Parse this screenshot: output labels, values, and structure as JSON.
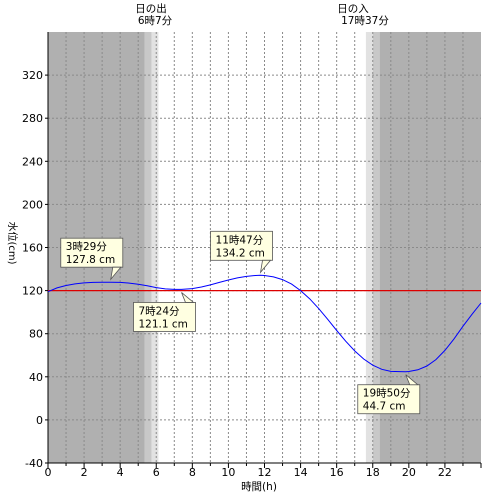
{
  "header": {
    "sunrise_label": "日の出",
    "sunrise_time": "6時7分",
    "sunset_label": "日の入",
    "sunset_time": "17時37分"
  },
  "chart_data": {
    "type": "line",
    "xlabel": "時間(h)",
    "ylabel": "水位(cm)",
    "xlim": [
      0,
      24
    ],
    "ylim": [
      -40,
      360
    ],
    "x_ticks": [
      0,
      2,
      4,
      6,
      8,
      10,
      12,
      14,
      16,
      18,
      20,
      22
    ],
    "y_ticks": [
      -40,
      0,
      40,
      80,
      120,
      160,
      200,
      240,
      280,
      320
    ],
    "grid": true,
    "reference_line": {
      "value": 120,
      "color": "#dd0000"
    },
    "series": [
      {
        "color": "#0000ff",
        "x": [
          0,
          0.5,
          1,
          1.5,
          2,
          2.5,
          3,
          3.48,
          4,
          4.5,
          5,
          5.5,
          6,
          6.5,
          7,
          7.4,
          8,
          8.5,
          9,
          9.5,
          10,
          10.5,
          11,
          11.5,
          11.78,
          12,
          12.5,
          13,
          13.5,
          14,
          14.5,
          15,
          15.5,
          16,
          16.5,
          17,
          17.5,
          18,
          18.5,
          19,
          19.5,
          19.83,
          20,
          20.5,
          21,
          21.5,
          22,
          22.5,
          23,
          23.5,
          24
        ],
        "y": [
          119.0,
          122.5,
          124.7,
          126.2,
          127.1,
          127.6,
          127.8,
          127.8,
          127.6,
          127.0,
          125.9,
          124.5,
          122.8,
          121.6,
          121.1,
          121.1,
          121.9,
          123.3,
          125.3,
          127.6,
          129.8,
          131.8,
          133.2,
          134.0,
          134.2,
          134.0,
          132.7,
          130.2,
          126.0,
          120.0,
          112.5,
          103.5,
          93.5,
          83.0,
          73.0,
          64.0,
          56.5,
          50.8,
          47.0,
          45.0,
          44.8,
          44.7,
          44.9,
          46.5,
          50.0,
          56.0,
          64.5,
          75.0,
          87.0,
          98.0,
          108.5
        ]
      }
    ],
    "annotations": [
      {
        "time": "3時29分",
        "value": "127.8 cm",
        "x": 3.48,
        "y": 127.8,
        "placement": "above"
      },
      {
        "time": "7時24分",
        "value": "121.1 cm",
        "x": 7.4,
        "y": 121.1,
        "placement": "below"
      },
      {
        "time": "11時47分",
        "value": "134.2 cm",
        "x": 11.78,
        "y": 134.2,
        "placement": "above"
      },
      {
        "time": "19時50分",
        "value": "44.7 cm",
        "x": 19.83,
        "y": 44.7,
        "placement": "below"
      }
    ],
    "daylight": {
      "sunrise": 6.12,
      "sunset": 17.62,
      "twilight_dark_color": "#b0b0b0",
      "twilight_mid_color": "#c8c8c8",
      "twilight_light_color": "#e2e2e2",
      "day_color": "#ffffff"
    }
  }
}
